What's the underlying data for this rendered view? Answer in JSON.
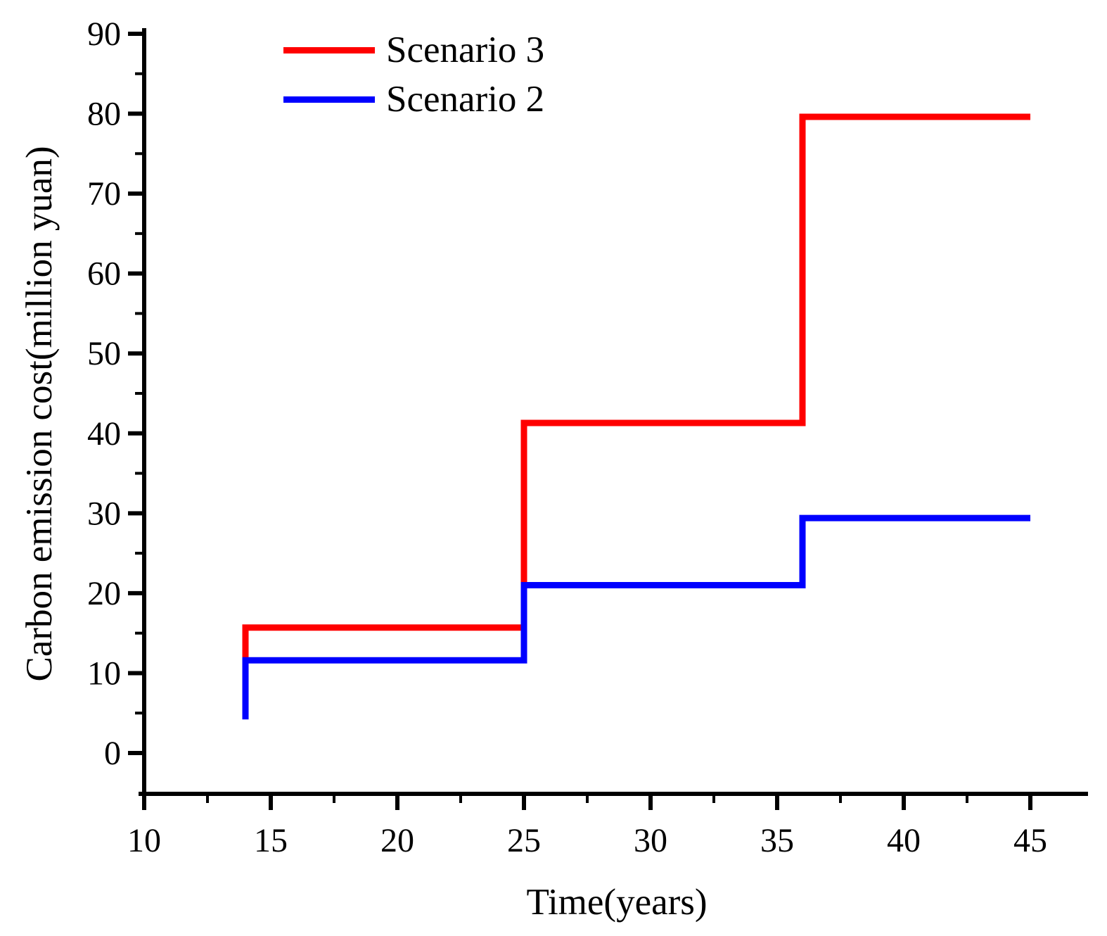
{
  "figure": {
    "background": "#ffffff",
    "axis_color": "#000000"
  },
  "chart_data": {
    "type": "line",
    "subtype": "step",
    "title": "",
    "xlabel": "Time(years)",
    "ylabel": "Carbon emission cost(million yuan)",
    "xlim": [
      10,
      47.2
    ],
    "ylim": [
      -5.1,
      90.6
    ],
    "x_major_ticks": [
      10,
      15,
      20,
      25,
      30,
      35,
      40,
      45
    ],
    "x_minor_ticks": [
      12.5,
      17.5,
      22.5,
      27.5,
      32.5,
      37.5,
      42.5
    ],
    "y_major_ticks": [
      0,
      10,
      20,
      30,
      40,
      50,
      60,
      70,
      80,
      90
    ],
    "y_minor_ticks": [
      5,
      15,
      25,
      35,
      45,
      55,
      65,
      75,
      85
    ],
    "grid": false,
    "legend_position": "top-left",
    "series": [
      {
        "name": "Scenario 3",
        "color": "#ff0000",
        "points": [
          [
            14,
            11.6
          ],
          [
            14,
            15.7
          ],
          [
            25,
            15.7
          ],
          [
            25,
            41.3
          ],
          [
            36,
            41.3
          ],
          [
            36,
            79.6
          ],
          [
            45,
            79.6
          ]
        ]
      },
      {
        "name": "Scenario 2",
        "color": "#0000ff",
        "points": [
          [
            14,
            4.2
          ],
          [
            14,
            11.6
          ],
          [
            25,
            11.6
          ],
          [
            25,
            21.0
          ],
          [
            36,
            21.0
          ],
          [
            36,
            29.4
          ],
          [
            45,
            29.4
          ]
        ]
      }
    ]
  }
}
